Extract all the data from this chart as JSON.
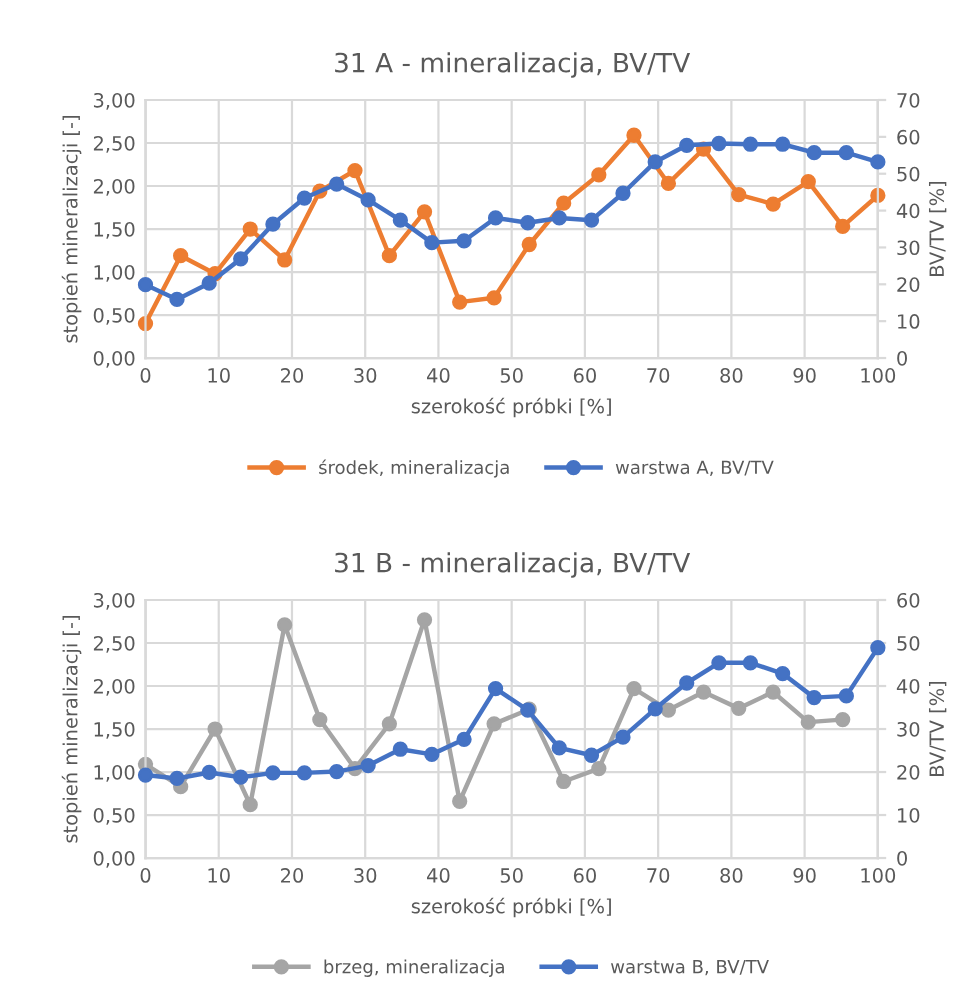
{
  "chart_data": [
    {
      "type": "line",
      "title": "31 A - mineralizacja, BV/TV",
      "xlabel": "szerokość próbki [%]",
      "ylabel": "stopień mineralizacji [-]",
      "y2label": "BV/TV [%]",
      "xlim": [
        0,
        100
      ],
      "xticks": [
        0,
        10,
        20,
        30,
        40,
        50,
        60,
        70,
        80,
        90,
        100
      ],
      "ylim": [
        0,
        3
      ],
      "yticks": [
        {
          "value": 0,
          "label": "0,00"
        },
        {
          "value": 0.5,
          "label": "0,50"
        },
        {
          "value": 1,
          "label": "1,00"
        },
        {
          "value": 1.5,
          "label": "1,50"
        },
        {
          "value": 2,
          "label": "2,00"
        },
        {
          "value": 2.5,
          "label": "2,50"
        },
        {
          "value": 3,
          "label": "3,00"
        }
      ],
      "y2lim": [
        0,
        70
      ],
      "y2ticks": [
        0,
        10,
        20,
        30,
        40,
        50,
        60,
        70
      ],
      "grid": true,
      "legend": "bottom",
      "marker": "circle",
      "line_style": "solid",
      "series": [
        {
          "name": "środek, mineralizacja",
          "color": "#ed7d31",
          "axis": "y",
          "x": [
            0,
            4.8,
            9.5,
            14.3,
            19.0,
            23.8,
            28.6,
            33.3,
            38.1,
            42.9,
            47.6,
            52.4,
            57.1,
            61.9,
            66.7,
            71.4,
            76.2,
            81.0,
            85.7,
            90.5,
            95.2,
            100
          ],
          "values": [
            0.4,
            1.19,
            0.98,
            1.5,
            1.14,
            1.94,
            2.18,
            1.19,
            1.7,
            0.65,
            0.7,
            1.32,
            1.8,
            2.13,
            2.59,
            2.03,
            2.43,
            1.9,
            1.79,
            2.05,
            1.53,
            1.89
          ]
        },
        {
          "name": "warstwa A, BV/TV",
          "color": "#4472c4",
          "axis": "y2",
          "x": [
            0,
            4.3,
            8.7,
            13.0,
            17.4,
            21.7,
            26.1,
            30.4,
            34.8,
            39.1,
            43.5,
            47.8,
            52.2,
            56.5,
            60.9,
            65.2,
            69.6,
            73.9,
            78.3,
            82.6,
            87.0,
            91.3,
            95.7,
            100
          ],
          "values": [
            19.9,
            15.9,
            20.3,
            26.9,
            36.3,
            43.4,
            47.2,
            42.9,
            37.4,
            31.3,
            31.8,
            38.0,
            36.7,
            38.0,
            37.4,
            44.7,
            53.2,
            57.7,
            58.2,
            58.0,
            58.0,
            55.7,
            55.7,
            53.2
          ]
        }
      ]
    },
    {
      "type": "line",
      "title": "31 B - mineralizacja, BV/TV",
      "xlabel": "szerokość próbki [%]",
      "ylabel": "stopień mineralizacji [-]",
      "y2label": "BV/TV [%]",
      "xlim": [
        0,
        100
      ],
      "xticks": [
        0,
        10,
        20,
        30,
        40,
        50,
        60,
        70,
        80,
        90,
        100
      ],
      "ylim": [
        0,
        3
      ],
      "yticks": [
        {
          "value": 0,
          "label": "0,00"
        },
        {
          "value": 0.5,
          "label": "0,50"
        },
        {
          "value": 1,
          "label": "1,00"
        },
        {
          "value": 1.5,
          "label": "1,50"
        },
        {
          "value": 2,
          "label": "2,00"
        },
        {
          "value": 2.5,
          "label": "2,50"
        },
        {
          "value": 3,
          "label": "3,00"
        }
      ],
      "y2lim": [
        0,
        60
      ],
      "y2ticks": [
        0,
        10,
        20,
        30,
        40,
        50,
        60
      ],
      "grid": true,
      "legend": "bottom",
      "marker": "circle",
      "line_style": "solid",
      "series": [
        {
          "name": "brzeg, mineralizacja",
          "color": "#a5a5a5",
          "axis": "y",
          "x": [
            0,
            4.8,
            9.5,
            14.3,
            19.0,
            23.8,
            28.6,
            33.3,
            38.1,
            42.9,
            47.6,
            52.4,
            57.1,
            61.9,
            66.7,
            71.4,
            76.2,
            81.0,
            85.7,
            90.5,
            95.2
          ],
          "values": [
            1.09,
            0.83,
            1.5,
            0.62,
            2.71,
            1.61,
            1.04,
            1.56,
            2.77,
            0.66,
            1.56,
            1.73,
            0.89,
            1.04,
            1.97,
            1.72,
            1.93,
            1.74,
            1.93,
            1.58,
            1.61
          ]
        },
        {
          "name": "warstwa B, BV/TV",
          "color": "#4472c4",
          "axis": "y2",
          "x": [
            0,
            4.3,
            8.7,
            13.0,
            17.4,
            21.7,
            26.1,
            30.4,
            34.8,
            39.1,
            43.5,
            47.8,
            52.2,
            56.5,
            60.9,
            65.2,
            69.6,
            73.9,
            78.3,
            82.6,
            87.0,
            91.3,
            95.7,
            100
          ],
          "values": [
            19.3,
            18.5,
            19.9,
            18.8,
            19.8,
            19.8,
            20.1,
            21.5,
            25.3,
            24.1,
            27.6,
            39.4,
            34.4,
            25.6,
            23.9,
            28.1,
            34.7,
            40.7,
            45.4,
            45.4,
            42.9,
            37.3,
            37.7,
            48.9
          ]
        }
      ]
    }
  ]
}
